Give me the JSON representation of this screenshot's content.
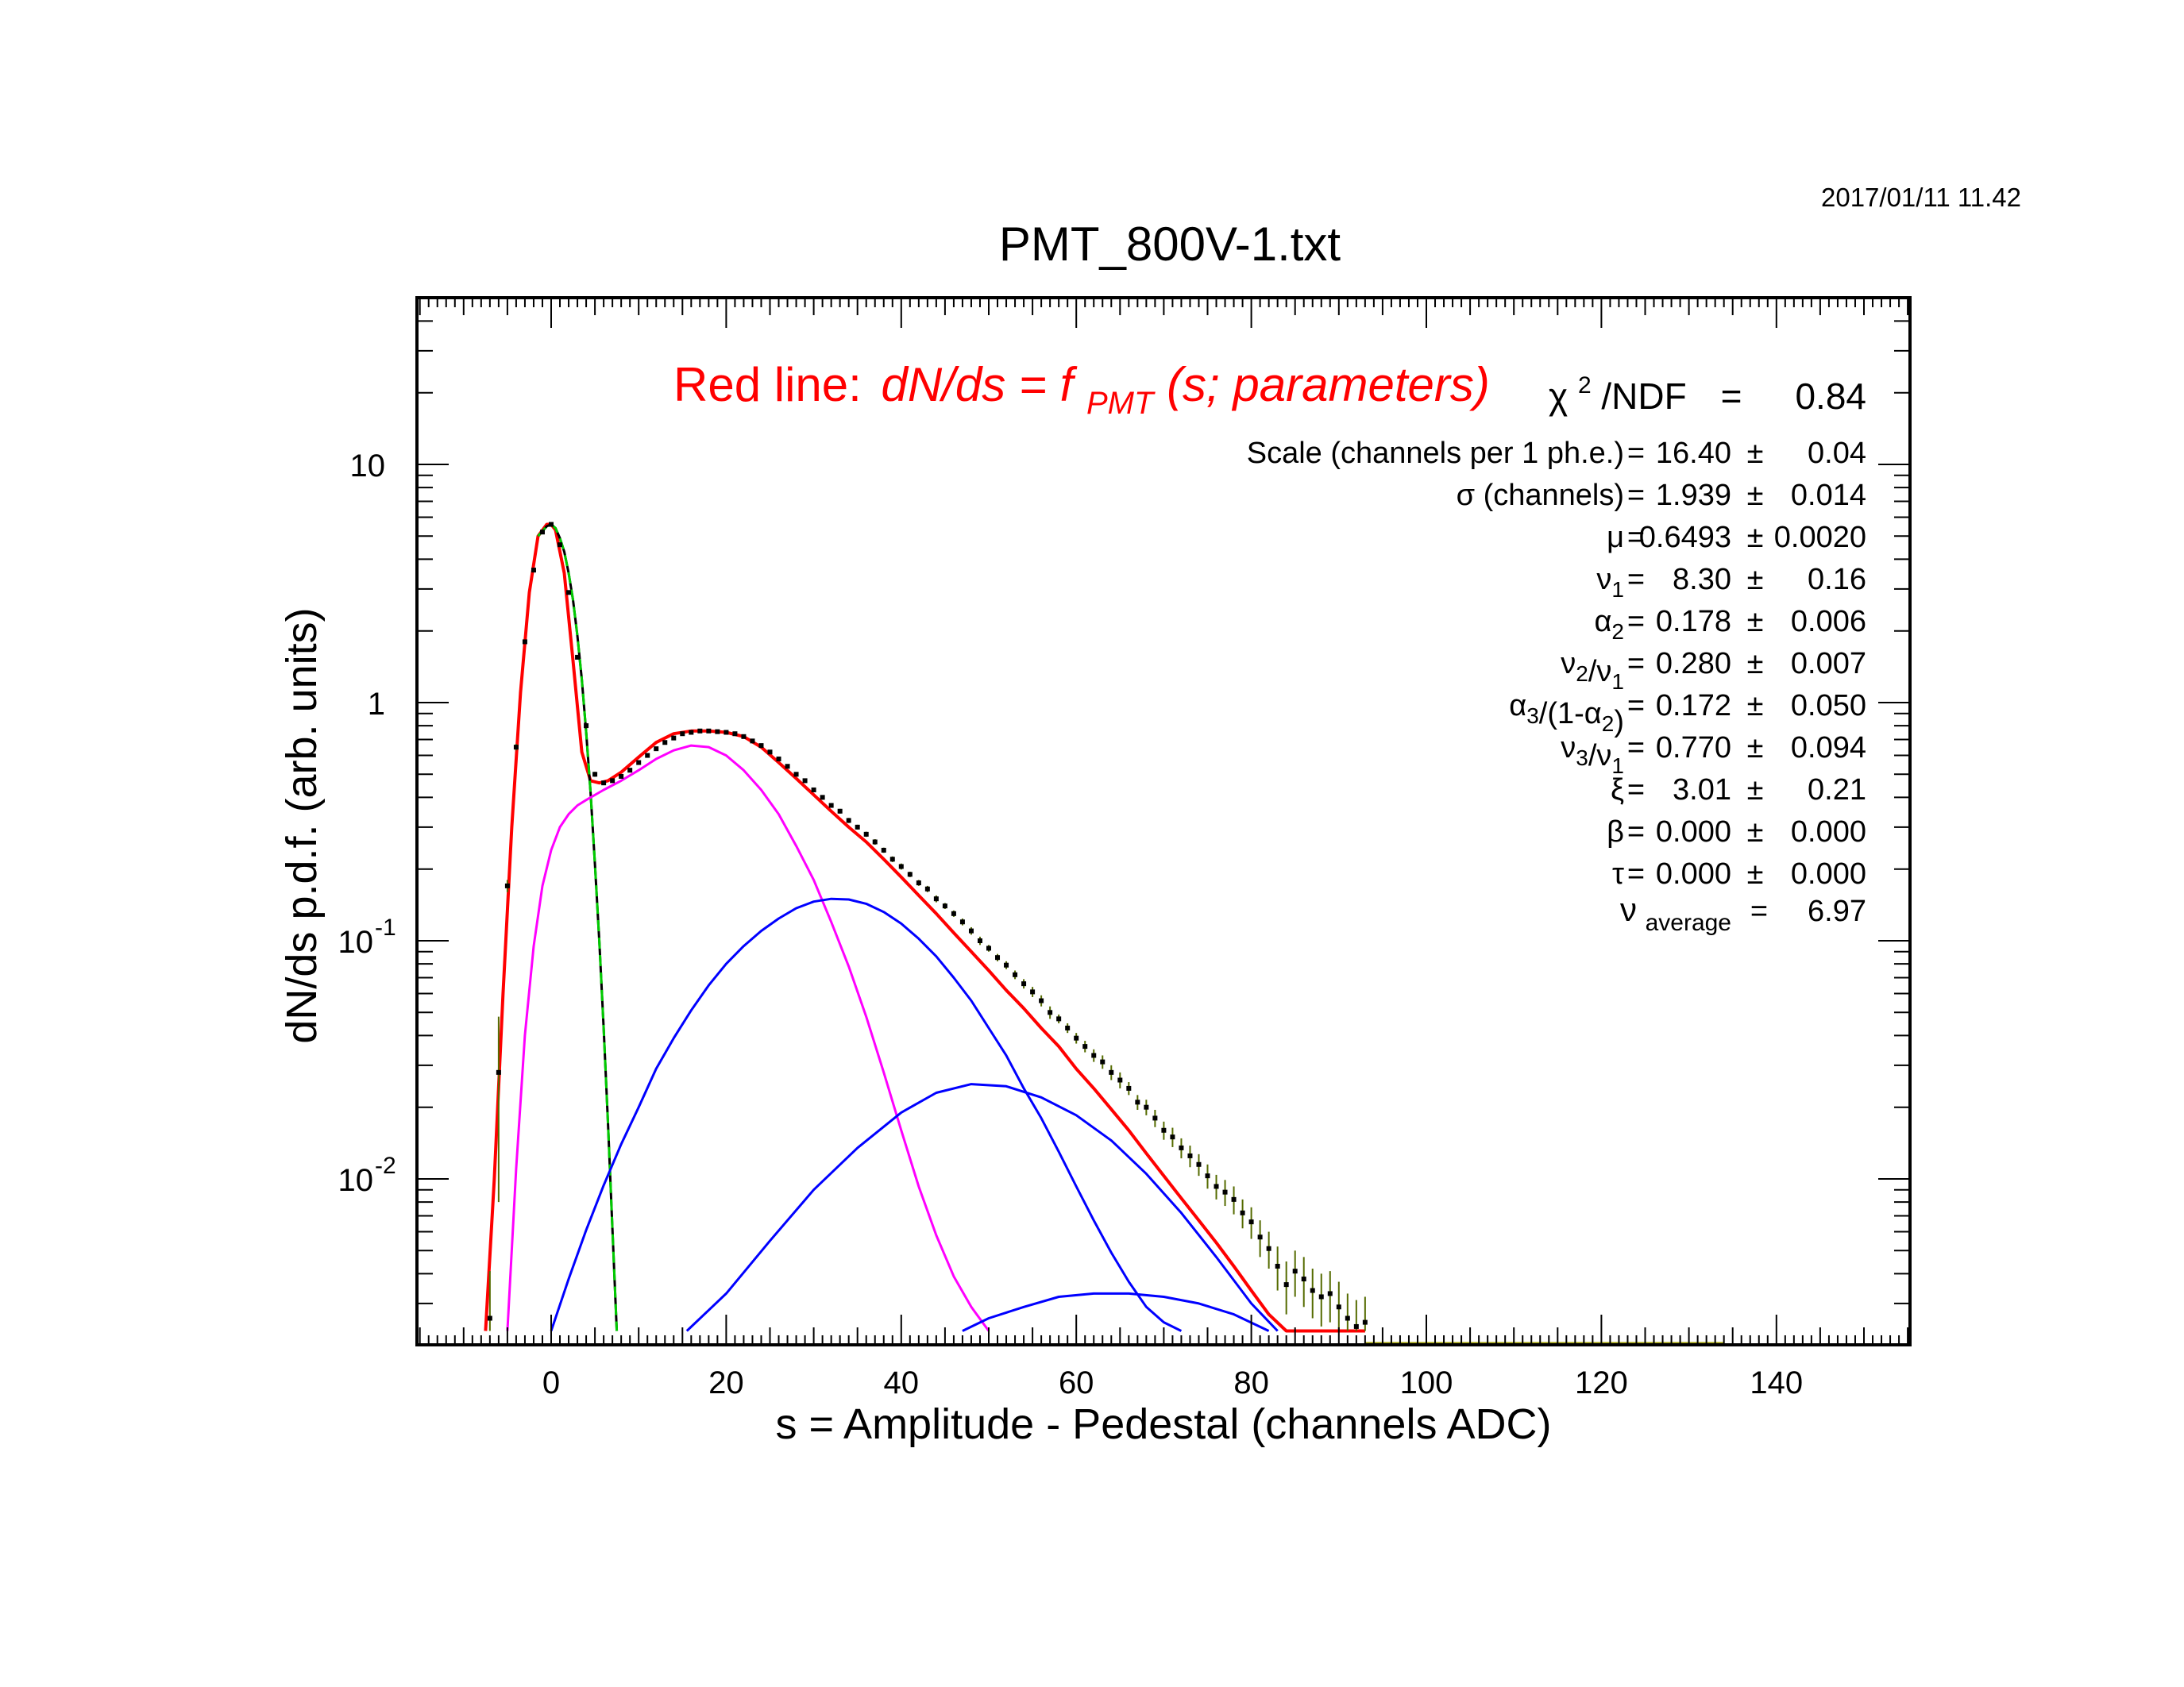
{
  "timestamp": "2017/01/11   11.42",
  "chart_data": {
    "type": "line",
    "title": "PMT_800V-1.txt",
    "xlabel": "s = Amplitude - Pedestal (channels ADC)",
    "ylabel": "dN/ds p.d.f. (arb. units)",
    "xlim": [
      -16,
      155
    ],
    "ylim": [
      0.0023,
      50
    ],
    "yscale": "log",
    "grid": false,
    "x_ticks": [
      "0",
      "20",
      "40",
      "60",
      "80",
      "100",
      "120",
      "140"
    ],
    "y_ticks": [
      {
        "base": "10",
        "exp": ""
      },
      {
        "base": "1",
        "exp": ""
      },
      {
        "base": "10",
        "exp": "-1"
      },
      {
        "base": "10",
        "exp": "-2"
      }
    ],
    "fit_label": {
      "prefix": "Red line:",
      "formula_main": "dN/ds = f",
      "formula_sub": "PMT",
      "formula_end": "(s; parameters)"
    },
    "chi2": {
      "label": "χ",
      "sup": "2",
      "rest": "/NDF",
      "eq": "=",
      "value": "0.84"
    },
    "parameters": [
      {
        "parts": [
          {
            "t": "Scale (channels per 1 ph.e.)",
            "s": ""
          }
        ],
        "value": "16.40",
        "err": "0.04"
      },
      {
        "parts": [
          {
            "t": "σ (channels)",
            "s": ""
          }
        ],
        "value": "1.939",
        "err": "0.014"
      },
      {
        "parts": [
          {
            "t": "μ",
            "s": ""
          }
        ],
        "value": "0.6493",
        "err": "0.0020"
      },
      {
        "parts": [
          {
            "t": "ν",
            "s": "1"
          }
        ],
        "value": "8.30",
        "err": "0.16"
      },
      {
        "parts": [
          {
            "t": "α",
            "s": "2"
          }
        ],
        "value": "0.178",
        "err": "0.006"
      },
      {
        "parts": [
          {
            "t": "ν",
            "s": "2"
          },
          {
            "t": "/ν",
            "s": "1"
          }
        ],
        "value": "0.280",
        "err": "0.007"
      },
      {
        "parts": [
          {
            "t": "α",
            "s": "3"
          },
          {
            "t": "/(1-α",
            "s": "2"
          },
          {
            "t": ")",
            "s": ""
          }
        ],
        "value": "0.172",
        "err": "0.050"
      },
      {
        "parts": [
          {
            "t": "ν",
            "s": "3"
          },
          {
            "t": "/ν",
            "s": "1"
          }
        ],
        "value": "0.770",
        "err": "0.094"
      },
      {
        "parts": [
          {
            "t": "ξ",
            "s": ""
          }
        ],
        "value": "3.01",
        "err": "0.21"
      },
      {
        "parts": [
          {
            "t": "β",
            "s": ""
          }
        ],
        "value": "0.000",
        "err": "0.000"
      },
      {
        "parts": [
          {
            "t": "τ",
            "s": ""
          }
        ],
        "value": "0.000",
        "err": "0.000"
      }
    ],
    "nu_average": {
      "label": "ν",
      "sub": "average",
      "eq": "=",
      "value": "6.97"
    },
    "pm_symbol": "±",
    "eq_symbol": "=",
    "series": [
      {
        "color": "#ff0000",
        "style": "solid",
        "kind": "total",
        "x": [
          -7.5,
          -6.5,
          -5.5,
          -4.5,
          -3.5,
          -2.5,
          -1.5,
          -0.5,
          0,
          0.5,
          1.5,
          2.5,
          3.5,
          4.5,
          5.5,
          6.5,
          8,
          10,
          12,
          14,
          16,
          18,
          20,
          22,
          24,
          26,
          28,
          30,
          32,
          34,
          36,
          38,
          40,
          42,
          44,
          46,
          48,
          50,
          52,
          54,
          56,
          58,
          60,
          62,
          64,
          66,
          68,
          70,
          72,
          74,
          76,
          78,
          80,
          82,
          84,
          86,
          88,
          90,
          92,
          93
        ],
        "y": [
          0.0023,
          0.01,
          0.06,
          0.3,
          1.1,
          2.9,
          5.0,
          5.6,
          5.6,
          5.3,
          3.5,
          1.5,
          0.62,
          0.47,
          0.46,
          0.47,
          0.51,
          0.59,
          0.68,
          0.74,
          0.76,
          0.76,
          0.75,
          0.72,
          0.65,
          0.56,
          0.48,
          0.41,
          0.35,
          0.3,
          0.26,
          0.22,
          0.185,
          0.155,
          0.13,
          0.108,
          0.09,
          0.075,
          0.062,
          0.052,
          0.043,
          0.036,
          0.029,
          0.024,
          0.0196,
          0.016,
          0.0128,
          0.0103,
          0.0083,
          0.0067,
          0.0054,
          0.0043,
          0.0034,
          0.0027,
          0.0023,
          0.0023,
          0.0023,
          0.0023,
          0.0023,
          0.0023
        ]
      },
      {
        "color": "#00cc00",
        "style": "dashed",
        "kind": "pedestal",
        "x": [
          -1.5,
          -0.5,
          0,
          0.5,
          1,
          1.5,
          2,
          2.5,
          3,
          3.5,
          4,
          4.5,
          5,
          5.5,
          6,
          6.5,
          7,
          7.5
        ],
        "y": [
          5.0,
          5.5,
          5.6,
          5.4,
          4.9,
          4.3,
          3.5,
          2.7,
          1.9,
          1.25,
          0.75,
          0.42,
          0.21,
          0.1,
          0.043,
          0.017,
          0.0062,
          0.0023
        ]
      },
      {
        "color": "#ff00ff",
        "style": "solid",
        "kind": "1 ph.e.",
        "x": [
          -5,
          -4,
          -3,
          -2,
          -1,
          0,
          1,
          2,
          3,
          4,
          6,
          8,
          10,
          12,
          14,
          16,
          18,
          20,
          22,
          24,
          26,
          28,
          30,
          32,
          34,
          36,
          38,
          40,
          42,
          44,
          46,
          48,
          50
        ],
        "y": [
          0.0023,
          0.011,
          0.04,
          0.095,
          0.17,
          0.24,
          0.3,
          0.34,
          0.37,
          0.39,
          0.43,
          0.47,
          0.52,
          0.58,
          0.63,
          0.66,
          0.65,
          0.6,
          0.52,
          0.43,
          0.34,
          0.25,
          0.18,
          0.12,
          0.078,
          0.048,
          0.028,
          0.016,
          0.0093,
          0.0058,
          0.0039,
          0.0029,
          0.0023
        ]
      },
      {
        "color": "#0000ff",
        "style": "solid",
        "kind": "2 ph.e.",
        "x": [
          0,
          2,
          4,
          6,
          8,
          10,
          12,
          14,
          16,
          18,
          20,
          22,
          24,
          26,
          28,
          30,
          32,
          34,
          36,
          38,
          40,
          42,
          44,
          46,
          48,
          50,
          52,
          54,
          56,
          58,
          60,
          62,
          64,
          66,
          68,
          70,
          72
        ],
        "y": [
          0.0023,
          0.0038,
          0.0061,
          0.0094,
          0.014,
          0.02,
          0.029,
          0.039,
          0.051,
          0.065,
          0.08,
          0.095,
          0.11,
          0.124,
          0.137,
          0.146,
          0.15,
          0.149,
          0.143,
          0.132,
          0.118,
          0.102,
          0.086,
          0.07,
          0.056,
          0.043,
          0.033,
          0.024,
          0.018,
          0.013,
          0.0093,
          0.0067,
          0.0049,
          0.0037,
          0.0029,
          0.0025,
          0.0023
        ]
      },
      {
        "color": "#0000ff",
        "style": "solid",
        "kind": "3 ph.e.",
        "x": [
          15.5,
          20,
          25,
          30,
          35,
          40,
          44,
          48,
          52,
          56,
          60,
          64,
          68,
          72,
          76,
          80,
          83
        ],
        "y": [
          0.0023,
          0.0033,
          0.0055,
          0.009,
          0.0135,
          0.019,
          0.023,
          0.025,
          0.0245,
          0.022,
          0.0185,
          0.0145,
          0.0105,
          0.0072,
          0.0047,
          0.003,
          0.0023
        ]
      },
      {
        "color": "#0000ff",
        "style": "solid",
        "kind": "4 ph.e.",
        "x": [
          47,
          50,
          54,
          58,
          62,
          64,
          66,
          70,
          74,
          78,
          82
        ],
        "y": [
          0.0023,
          0.0026,
          0.0029,
          0.0032,
          0.0033,
          0.0033,
          0.0033,
          0.0032,
          0.003,
          0.0027,
          0.0023
        ]
      }
    ],
    "points": {
      "color": "#000000",
      "x": [
        -7,
        -6,
        -5,
        -4,
        -3,
        -2,
        -1,
        0,
        1,
        2,
        3,
        4,
        5,
        6,
        7,
        8,
        9,
        10,
        11,
        12,
        13,
        14,
        15,
        16,
        17,
        18,
        19,
        20,
        21,
        22,
        23,
        24,
        25,
        26,
        27,
        28,
        29,
        30,
        31,
        32,
        33,
        34,
        35,
        36,
        37,
        38,
        39,
        40,
        41,
        42,
        43,
        44,
        45,
        46,
        47,
        48,
        49,
        50,
        51,
        52,
        53,
        54,
        55,
        56,
        57,
        58,
        59,
        60,
        61,
        62,
        63,
        64,
        65,
        66,
        67,
        68,
        69,
        70,
        71,
        72,
        73,
        74,
        75,
        76,
        77,
        78,
        79,
        80,
        81,
        82,
        83,
        84,
        85,
        86,
        87,
        88,
        89,
        90,
        91,
        92,
        93
      ],
      "y": [
        0.0026,
        0.028,
        0.17,
        0.65,
        1.8,
        3.6,
        5.2,
        5.6,
        4.6,
        2.9,
        1.55,
        0.8,
        0.5,
        0.46,
        0.47,
        0.49,
        0.52,
        0.56,
        0.6,
        0.64,
        0.68,
        0.71,
        0.74,
        0.75,
        0.76,
        0.76,
        0.755,
        0.75,
        0.74,
        0.72,
        0.69,
        0.66,
        0.62,
        0.58,
        0.54,
        0.5,
        0.47,
        0.43,
        0.4,
        0.37,
        0.35,
        0.32,
        0.3,
        0.28,
        0.26,
        0.24,
        0.22,
        0.205,
        0.19,
        0.175,
        0.165,
        0.15,
        0.14,
        0.13,
        0.12,
        0.11,
        0.1,
        0.093,
        0.085,
        0.079,
        0.072,
        0.066,
        0.061,
        0.056,
        0.05,
        0.047,
        0.043,
        0.039,
        0.036,
        0.033,
        0.031,
        0.028,
        0.026,
        0.024,
        0.021,
        0.02,
        0.018,
        0.016,
        0.015,
        0.0135,
        0.0125,
        0.0115,
        0.0103,
        0.0093,
        0.0088,
        0.0082,
        0.0072,
        0.0066,
        0.0057,
        0.0051,
        0.0043,
        0.0036,
        0.0041,
        0.0038,
        0.0034,
        0.0032,
        0.0033,
        0.0029,
        0.0026,
        0.0024,
        0.0025
      ],
      "err": [
        0.0015,
        0.02,
        0.01,
        0.02,
        0.03,
        0.05,
        0.06,
        0.06,
        0.05,
        0.04,
        0.03,
        0.02,
        0.012,
        0.01,
        0.01,
        0.01,
        0.01,
        0.01,
        0.011,
        0.011,
        0.012,
        0.012,
        0.012,
        0.012,
        0.012,
        0.012,
        0.012,
        0.012,
        0.012,
        0.012,
        0.011,
        0.011,
        0.011,
        0.011,
        0.01,
        0.01,
        0.01,
        0.009,
        0.009,
        0.008,
        0.008,
        0.008,
        0.007,
        0.007,
        0.007,
        0.006,
        0.006,
        0.006,
        0.005,
        0.005,
        0.005,
        0.005,
        0.004,
        0.004,
        0.004,
        0.004,
        0.004,
        0.003,
        0.003,
        0.003,
        0.003,
        0.003,
        0.003,
        0.003,
        0.003,
        0.002,
        0.002,
        0.002,
        0.002,
        0.002,
        0.002,
        0.002,
        0.002,
        0.0015,
        0.0015,
        0.0015,
        0.0015,
        0.0014,
        0.0014,
        0.0013,
        0.0013,
        0.0012,
        0.0012,
        0.0011,
        0.0011,
        0.0011,
        0.001,
        0.001,
        0.001,
        0.0009,
        0.0009,
        0.0009,
        0.0009,
        0.0009,
        0.0008,
        0.0008,
        0.0008,
        0.0008,
        0.0007,
        0.0007,
        0.0007
      ]
    },
    "tail_line": {
      "color": "#999900",
      "x": [
        93,
        134
      ],
      "y": 0.0023
    }
  }
}
